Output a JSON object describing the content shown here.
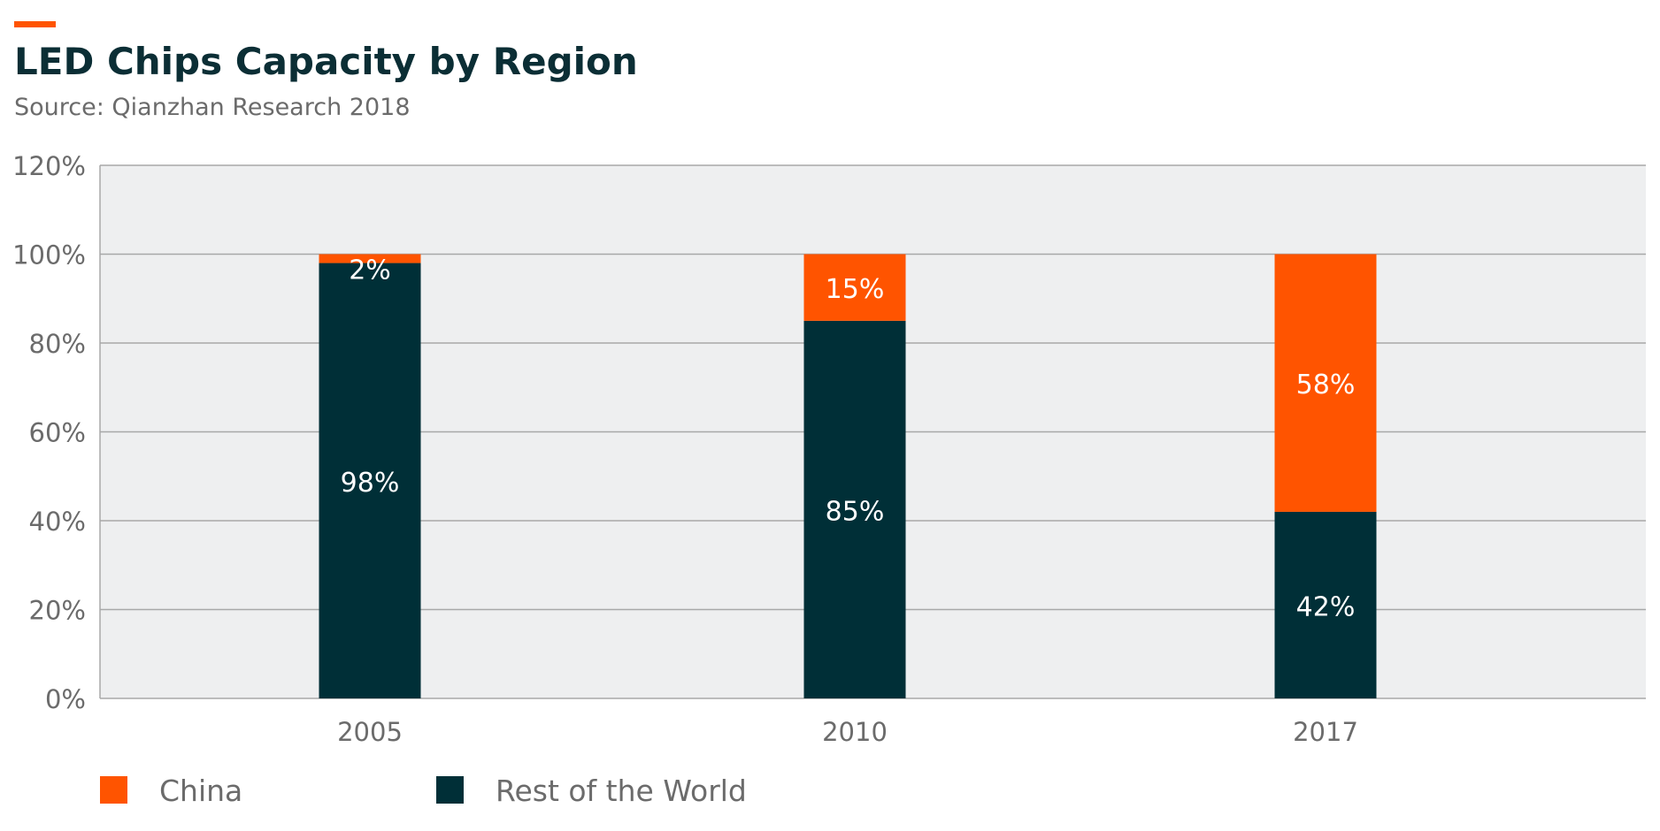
{
  "header": {
    "title": "LED Chips Capacity by Region",
    "subtitle": "Source: Qianzhan Research 2018"
  },
  "colors": {
    "accent": "#ff5400",
    "china": "#ff5400",
    "rest_of_world": "#002f37",
    "plot_background": "#eeeff0",
    "gridline": "#a8a8a8",
    "tick_text": "#6b6b6b",
    "data_label": "#ffffff"
  },
  "chart_data": {
    "type": "bar",
    "stacked": true,
    "title": "LED Chips Capacity by Region",
    "subtitle": "Source: Qianzhan Research 2018",
    "categories": [
      "2005",
      "2010",
      "2017"
    ],
    "series": [
      {
        "name": "Rest of the World",
        "color": "#002f37",
        "values": [
          98,
          85,
          42
        ],
        "labels": [
          "98%",
          "85%",
          "42%"
        ]
      },
      {
        "name": "China",
        "color": "#ff5400",
        "values": [
          2,
          15,
          58
        ],
        "labels": [
          "2%",
          "15%",
          "58%"
        ]
      }
    ],
    "ylim": [
      0,
      120
    ],
    "yticks": [
      0,
      20,
      40,
      60,
      80,
      100,
      120
    ],
    "ytick_labels": [
      "0%",
      "20%",
      "40%",
      "60%",
      "80%",
      "100%",
      "120%"
    ],
    "grid": true,
    "legend_position": "bottom-left",
    "legend": [
      "China",
      "Rest of the World"
    ]
  }
}
